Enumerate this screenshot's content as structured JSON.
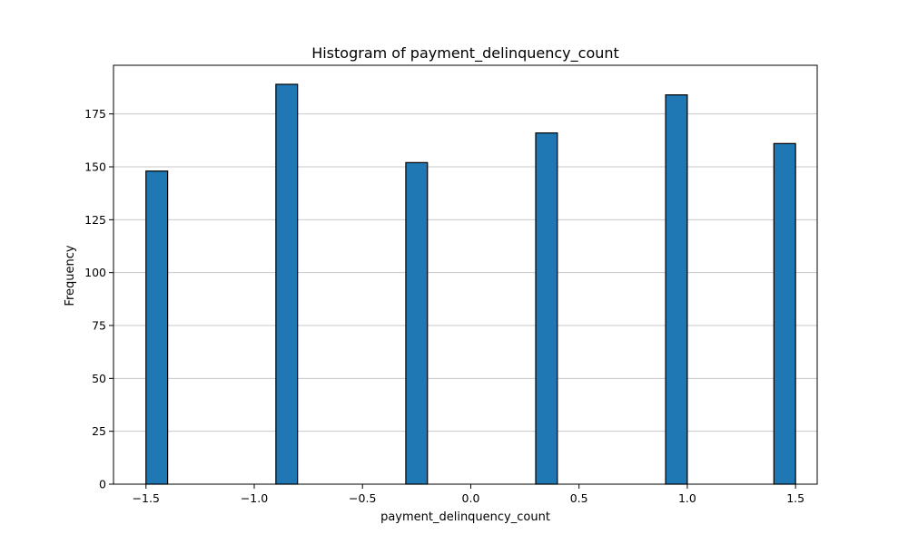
{
  "chart_data": {
    "type": "bar",
    "title": "Histogram of payment_delinquency_count",
    "xlabel": "payment_delinquency_count",
    "ylabel": "Frequency",
    "xlim": [
      -1.65,
      1.6
    ],
    "ylim": [
      0,
      198
    ],
    "xticks": [
      -1.5,
      -1.0,
      -0.5,
      0.0,
      0.5,
      1.0,
      1.5
    ],
    "xtick_labels": [
      "−1.5",
      "−1.0",
      "−0.5",
      "0.0",
      "0.5",
      "1.0",
      "1.5"
    ],
    "yticks": [
      0,
      25,
      50,
      75,
      100,
      125,
      150,
      175
    ],
    "ytick_labels": [
      "0",
      "25",
      "50",
      "75",
      "100",
      "125",
      "150",
      "175"
    ],
    "grid": {
      "y": true,
      "x": false
    },
    "bin_edges": [
      -1.5,
      -1.4,
      -1.3,
      -1.2,
      -1.1,
      -1.0,
      -0.9,
      -0.8,
      -0.7,
      -0.6,
      -0.5,
      -0.4,
      -0.3,
      -0.2,
      -0.1,
      0.0,
      0.1,
      0.2,
      0.3,
      0.4,
      0.5,
      0.6,
      0.7,
      0.8,
      0.9,
      1.0,
      1.1,
      1.2,
      1.3,
      1.4,
      1.5
    ],
    "bins": [
      {
        "x0": -1.5,
        "x1": -1.4,
        "value": 148
      },
      {
        "x0": -0.9,
        "x1": -0.8,
        "value": 189
      },
      {
        "x0": -0.3,
        "x1": -0.2,
        "value": 152
      },
      {
        "x0": 0.3,
        "x1": 0.4,
        "value": 166
      },
      {
        "x0": 0.9,
        "x1": 1.0,
        "value": 184
      },
      {
        "x0": 1.4,
        "x1": 1.5,
        "value": 161
      }
    ],
    "colors": {
      "bar": "#1f77b4",
      "edge": "#000000",
      "grid": "#c8c8c8"
    }
  }
}
